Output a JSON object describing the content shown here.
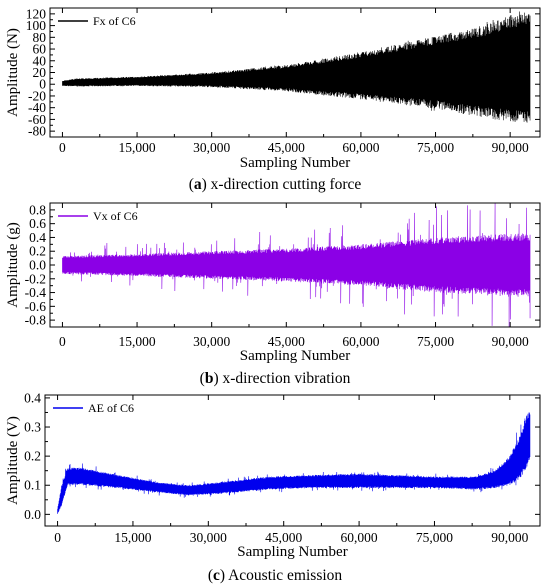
{
  "chart_data": [
    {
      "type": "line",
      "id": "a",
      "caption_letter": "a",
      "caption_text": " x-direction cutting force",
      "xlabel": "Sampling Number",
      "ylabel": "Amplitude (N)",
      "legend": "Fx of C6",
      "legend_position": "top-left",
      "color": "#000000",
      "xlim": [
        -2500,
        96000
      ],
      "ylim": [
        -90,
        130
      ],
      "x_ticks": [
        0,
        15000,
        30000,
        45000,
        60000,
        75000,
        90000
      ],
      "x_tick_labels": [
        "0",
        "15,000",
        "30,000",
        "45,000",
        "60,000",
        "75,000",
        "90,000"
      ],
      "y_ticks": [
        -80,
        -60,
        -40,
        -20,
        0,
        20,
        40,
        60,
        80,
        100,
        120
      ],
      "y_tick_labels": [
        "-80",
        "-60",
        "-40",
        "-20",
        "0",
        "20",
        "40",
        "60",
        "80",
        "100",
        "120"
      ],
      "x_range": [
        0,
        94000
      ],
      "envelope_upper": [
        [
          0,
          6
        ],
        [
          3000,
          10
        ],
        [
          15000,
          13
        ],
        [
          30000,
          20
        ],
        [
          45000,
          33
        ],
        [
          60000,
          55
        ],
        [
          75000,
          82
        ],
        [
          85000,
          102
        ],
        [
          90000,
          118
        ],
        [
          94000,
          122
        ]
      ],
      "envelope_lower": [
        [
          0,
          -3
        ],
        [
          3000,
          -4
        ],
        [
          15000,
          -3
        ],
        [
          30000,
          -5
        ],
        [
          45000,
          -12
        ],
        [
          60000,
          -26
        ],
        [
          75000,
          -42
        ],
        [
          85000,
          -58
        ],
        [
          90000,
          -65
        ],
        [
          94000,
          -67
        ]
      ],
      "outlier_amplitude": 0.04
    },
    {
      "type": "line",
      "id": "b",
      "caption_letter": "b",
      "caption_text": " x-direction vibration",
      "xlabel": "Sampling Number",
      "ylabel": "Amplitude (g)",
      "legend": "Vx of C6",
      "legend_position": "top-left",
      "color": "#8b00e6",
      "xlim": [
        -2500,
        96000
      ],
      "ylim": [
        -0.9,
        0.9
      ],
      "x_ticks": [
        0,
        15000,
        30000,
        45000,
        60000,
        75000,
        90000
      ],
      "x_tick_labels": [
        "0",
        "15,000",
        "30,000",
        "45,000",
        "60,000",
        "75,000",
        "90,000"
      ],
      "y_ticks": [
        -0.8,
        -0.6,
        -0.4,
        -0.2,
        0.0,
        0.2,
        0.4,
        0.6,
        0.8
      ],
      "y_tick_labels": [
        "-0.8",
        "-0.6",
        "-0.4",
        "-0.2",
        "0.0",
        "0.2",
        "0.4",
        "0.6",
        "0.8"
      ],
      "x_range": [
        0,
        94000
      ],
      "envelope_upper": [
        [
          0,
          0.13
        ],
        [
          15000,
          0.16
        ],
        [
          30000,
          0.2
        ],
        [
          45000,
          0.24
        ],
        [
          60000,
          0.3
        ],
        [
          75000,
          0.4
        ],
        [
          90000,
          0.46
        ],
        [
          94000,
          0.46
        ]
      ],
      "envelope_lower": [
        [
          0,
          -0.13
        ],
        [
          15000,
          -0.16
        ],
        [
          30000,
          -0.2
        ],
        [
          45000,
          -0.24
        ],
        [
          60000,
          -0.3
        ],
        [
          75000,
          -0.4
        ],
        [
          90000,
          -0.46
        ],
        [
          94000,
          -0.46
        ]
      ],
      "outlier_amplitude": 0.6
    },
    {
      "type": "line",
      "id": "c",
      "caption_letter": "c",
      "caption_text": " Acoustic emission",
      "xlabel": "Sampling Number",
      "ylabel": "Amplitude (V)",
      "legend": "AE of C6",
      "legend_position": "top-left",
      "color": "#0000ee",
      "xlim": [
        -2500,
        96000
      ],
      "ylim": [
        -0.04,
        0.41
      ],
      "x_ticks": [
        0,
        15000,
        30000,
        45000,
        60000,
        75000,
        90000
      ],
      "x_tick_labels": [
        "0",
        "15,000",
        "30,000",
        "45,000",
        "60,000",
        "75,000",
        "90,000"
      ],
      "y_ticks": [
        0.0,
        0.1,
        0.2,
        0.3,
        0.4
      ],
      "y_tick_labels": [
        "0.0",
        "0.1",
        "0.2",
        "0.3",
        "0.4"
      ],
      "x_range": [
        0,
        94000
      ],
      "envelope_upper": [
        [
          0,
          0.02
        ],
        [
          800,
          0.1
        ],
        [
          2000,
          0.16
        ],
        [
          5000,
          0.16
        ],
        [
          12000,
          0.135
        ],
        [
          20000,
          0.11
        ],
        [
          26000,
          0.1
        ],
        [
          32000,
          0.11
        ],
        [
          42000,
          0.13
        ],
        [
          50000,
          0.135
        ],
        [
          60000,
          0.14
        ],
        [
          75000,
          0.13
        ],
        [
          83000,
          0.13
        ],
        [
          87000,
          0.15
        ],
        [
          90000,
          0.2
        ],
        [
          92000,
          0.27
        ],
        [
          93000,
          0.33
        ],
        [
          94000,
          0.36
        ]
      ],
      "envelope_lower": [
        [
          0,
          0.0
        ],
        [
          800,
          0.03
        ],
        [
          2000,
          0.1
        ],
        [
          5000,
          0.1
        ],
        [
          12000,
          0.09
        ],
        [
          20000,
          0.075
        ],
        [
          26000,
          0.065
        ],
        [
          32000,
          0.07
        ],
        [
          42000,
          0.085
        ],
        [
          50000,
          0.09
        ],
        [
          60000,
          0.09
        ],
        [
          75000,
          0.09
        ],
        [
          83000,
          0.085
        ],
        [
          87000,
          0.09
        ],
        [
          90000,
          0.1
        ],
        [
          92000,
          0.12
        ],
        [
          93000,
          0.15
        ],
        [
          94000,
          0.18
        ]
      ],
      "outlier_amplitude": 0.3
    }
  ]
}
